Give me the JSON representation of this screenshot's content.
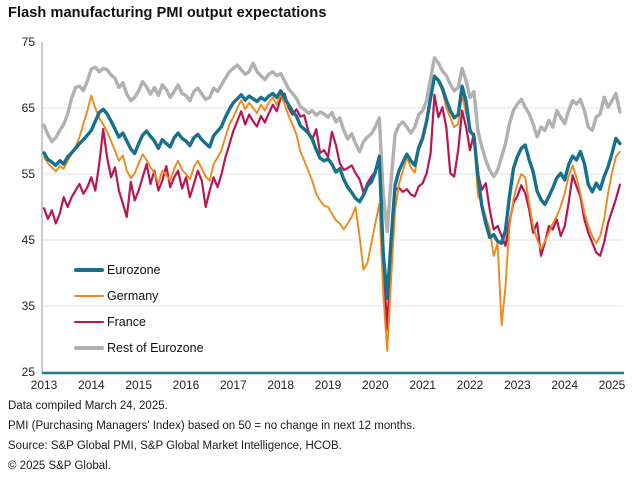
{
  "title": "Flash manufacturing PMI output expectations",
  "footer": {
    "line1": "Data compiled March 24, 2025.",
    "line2": "PMI (Purchasing Managers' Index) based on 50 = no change in next 12 months.",
    "line3": "Source: S&P Global PMI, S&P Global Market Intelligence, HCOB.",
    "line4": "© 2025 S&P Global."
  },
  "chart_data": {
    "type": "line",
    "x_unit": "month",
    "x_start": "2013-01",
    "x_end": "2025-03",
    "x_tick_labels": [
      "2013",
      "2014",
      "2015",
      "2016",
      "2017",
      "2018",
      "2019",
      "2020",
      "2021",
      "2022",
      "2023",
      "2024",
      "2025"
    ],
    "y_ticks": [
      25,
      35,
      45,
      55,
      65,
      75
    ],
    "grid_y": [
      35,
      45,
      55,
      65
    ],
    "ylim": [
      25,
      75
    ],
    "grid": "horizontal light gray lines",
    "legend_position": "inside lower-left",
    "colors": {
      "y_axis": "#a6a6a6",
      "x_axis": "#1d7a8a",
      "grid": "#e4e4e4",
      "text": "#222222"
    },
    "series": [
      {
        "name": "Eurozone",
        "color": "#17718c",
        "line_width": 3.4,
        "z": 4,
        "values": [
          58.2,
          57.2,
          56.8,
          56.3,
          57.0,
          56.5,
          57.6,
          58.2,
          58.9,
          59.6,
          60.2,
          60.9,
          61.6,
          63.0,
          64.3,
          64.8,
          64.1,
          63.0,
          61.8,
          60.6,
          61.2,
          60.0,
          58.8,
          58.1,
          59.6,
          60.9,
          61.5,
          60.7,
          60.0,
          58.9,
          60.2,
          59.6,
          59.1,
          60.5,
          61.2,
          60.4,
          60.0,
          59.3,
          60.5,
          61.0,
          60.2,
          59.6,
          59.1,
          60.8,
          61.5,
          62.2,
          63.6,
          64.8,
          65.8,
          66.4,
          67.0,
          66.2,
          66.8,
          66.4,
          66.0,
          66.6,
          66.2,
          66.8,
          67.2,
          66.6,
          67.6,
          66.5,
          65.5,
          64.5,
          63.8,
          62.3,
          61.8,
          61.2,
          60.3,
          58.7,
          57.4,
          57.0,
          57.3,
          56.5,
          55.3,
          55.8,
          54.2,
          53.0,
          52.2,
          51.3,
          50.8,
          51.8,
          53.2,
          53.8,
          55.3,
          57.6,
          43.0,
          36.2,
          45.0,
          53.3,
          55.5,
          56.8,
          58.0,
          57.0,
          56.3,
          59.0,
          60.5,
          63.0,
          66.5,
          69.8,
          69.2,
          68.0,
          66.2,
          64.6,
          63.5,
          64.0,
          68.3,
          66.0,
          61.5,
          60.8,
          54.8,
          50.2,
          47.5,
          45.4,
          45.8,
          44.8,
          44.5,
          46.5,
          51.5,
          55.8,
          57.6,
          58.9,
          59.4,
          57.1,
          55.4,
          52.4,
          51.1,
          50.4,
          51.6,
          52.9,
          54.4,
          55.1,
          54.1,
          56.4,
          57.7,
          57.1,
          58.4,
          56.6,
          53.4,
          52.3,
          53.6,
          52.7,
          54.6,
          56.1,
          58.1,
          60.4,
          59.6
        ]
      },
      {
        "name": "Germany",
        "color": "#ee8a1d",
        "line_width": 1.9,
        "z": 3,
        "values": [
          57.6,
          56.6,
          56.0,
          55.4,
          56.2,
          55.8,
          57.0,
          58.0,
          59.1,
          60.6,
          62.6,
          64.6,
          66.9,
          65.0,
          63.5,
          62.5,
          61.4,
          60.0,
          58.5,
          57.0,
          57.8,
          55.5,
          54.4,
          55.1,
          56.6,
          58.0,
          57.1,
          56.0,
          55.2,
          53.6,
          55.5,
          54.8,
          54.0,
          55.8,
          57.0,
          55.6,
          55.0,
          54.2,
          56.0,
          57.0,
          55.8,
          54.6,
          54.0,
          56.5,
          57.5,
          58.6,
          60.6,
          62.5,
          63.6,
          65.0,
          66.2,
          64.8,
          65.8,
          65.0,
          64.2,
          65.5,
          64.6,
          65.8,
          66.6,
          65.5,
          67.1,
          65.6,
          63.8,
          62.5,
          61.0,
          58.4,
          57.0,
          55.5,
          54.0,
          52.0,
          51.0,
          50.2,
          50.0,
          49.0,
          48.0,
          47.5,
          46.6,
          47.5,
          48.5,
          50.0,
          45.5,
          40.5,
          41.5,
          44.5,
          47.5,
          50.5,
          37.0,
          28.2,
          39.0,
          49.5,
          53.5,
          55.5,
          57.5,
          56.0,
          55.2,
          58.5,
          60.0,
          62.6,
          66.8,
          70.0,
          69.0,
          67.5,
          65.1,
          63.5,
          62.1,
          62.6,
          67.0,
          64.1,
          62.1,
          60.5,
          51.8,
          50.5,
          48.5,
          46.6,
          42.6,
          44.5,
          32.1,
          38.0,
          47.0,
          51.1,
          53.4,
          55.0,
          54.5,
          50.5,
          47.1,
          45.1,
          43.6,
          44.8,
          46.1,
          47.5,
          48.6,
          50.1,
          52.1,
          54.6,
          56.3,
          54.5,
          52.1,
          49.1,
          47.1,
          45.6,
          44.5,
          45.6,
          48.1,
          52.1,
          55.2,
          57.6,
          58.4
        ]
      },
      {
        "name": "France",
        "color": "#b91653",
        "line_width": 2.2,
        "z": 2,
        "values": [
          49.8,
          48.2,
          49.5,
          47.5,
          49.0,
          51.5,
          50.0,
          51.5,
          52.5,
          53.5,
          52.0,
          53.0,
          54.5,
          52.5,
          56.5,
          61.8,
          57.5,
          54.5,
          56.0,
          52.5,
          50.5,
          48.5,
          53.8,
          51.0,
          52.5,
          54.5,
          56.5,
          53.5,
          55.5,
          52.5,
          54.0,
          56.2,
          53.0,
          54.5,
          55.5,
          52.8,
          54.5,
          51.5,
          53.5,
          55.5,
          54.0,
          50.0,
          52.5,
          54.5,
          53.0,
          55.0,
          57.5,
          59.5,
          61.5,
          63.0,
          64.5,
          62.5,
          64.0,
          63.0,
          62.2,
          63.8,
          62.8,
          64.2,
          65.5,
          64.5,
          66.5,
          67.2,
          65.0,
          64.0,
          64.8,
          63.7,
          63.9,
          61.5,
          60.2,
          61.8,
          58.2,
          58.6,
          57.6,
          61.4,
          59.4,
          56.6,
          55.6,
          55.9,
          56.3,
          55.1,
          54.2,
          52.2,
          53.6,
          54.6,
          55.4,
          57.8,
          42.0,
          31.4,
          44.0,
          52.6,
          52.9,
          52.3,
          52.7,
          51.9,
          51.6,
          53.1,
          53.6,
          55.1,
          58.1,
          67.0,
          63.6,
          65.1,
          62.1,
          55.1,
          54.6,
          58.6,
          64.6,
          62.1,
          58.6,
          61.1,
          55.1,
          52.6,
          53.6,
          49.6,
          46.6,
          47.1,
          45.6,
          44.1,
          47.6,
          50.6,
          51.6,
          53.3,
          52.1,
          49.6,
          46.1,
          47.6,
          42.6,
          44.6,
          47.1,
          46.6,
          48.1,
          45.6,
          47.1,
          50.6,
          54.8,
          53.1,
          51.6,
          48.1,
          46.1,
          44.6,
          43.1,
          42.6,
          44.6,
          47.6,
          49.4,
          51.2,
          53.4
        ]
      },
      {
        "name": "Rest of Eurozone",
        "color": "#b1b1b1",
        "line_width": 3.4,
        "z": 1,
        "values": [
          62.4,
          61.0,
          59.9,
          60.5,
          61.6,
          62.5,
          64.1,
          66.5,
          68.1,
          68.3,
          67.6,
          69.1,
          70.9,
          71.2,
          70.5,
          71.0,
          70.8,
          70.0,
          69.5,
          68.1,
          68.8,
          67.1,
          66.1,
          66.6,
          67.6,
          69.0,
          68.2,
          67.1,
          68.1,
          66.9,
          68.5,
          67.8,
          66.6,
          67.5,
          68.5,
          67.2,
          66.9,
          66.1,
          67.5,
          68.0,
          67.1,
          66.3,
          66.6,
          68.0,
          67.5,
          68.5,
          69.5,
          70.5,
          71.0,
          71.5,
          70.8,
          70.1,
          70.5,
          71.8,
          70.5,
          69.9,
          69.3,
          70.1,
          70.5,
          69.9,
          70.2,
          69.1,
          67.9,
          67.2,
          66.5,
          65.2,
          64.8,
          64.2,
          64.6,
          63.9,
          64.4,
          64.1,
          63.6,
          64.3,
          62.9,
          63.5,
          61.6,
          60.3,
          61.1,
          59.6,
          58.4,
          59.9,
          60.6,
          61.1,
          62.1,
          63.5,
          52.0,
          46.3,
          54.0,
          61.0,
          62.4,
          62.9,
          62.1,
          61.2,
          62.1,
          64.0,
          64.6,
          66.1,
          69.5,
          72.6,
          71.8,
          70.6,
          69.9,
          68.6,
          67.6,
          68.1,
          71.0,
          69.1,
          66.6,
          67.5,
          61.6,
          59.1,
          57.1,
          55.6,
          54.6,
          55.6,
          57.6,
          59.6,
          62.6,
          64.6,
          65.6,
          66.3,
          65.1,
          64.1,
          62.6,
          60.6,
          62.1,
          61.6,
          63.1,
          62.1,
          64.6,
          63.6,
          62.6,
          64.6,
          66.1,
          65.6,
          66.3,
          64.6,
          62.1,
          61.6,
          63.6,
          64.1,
          66.6,
          65.1,
          66.1,
          67.2,
          64.4
        ]
      }
    ]
  }
}
